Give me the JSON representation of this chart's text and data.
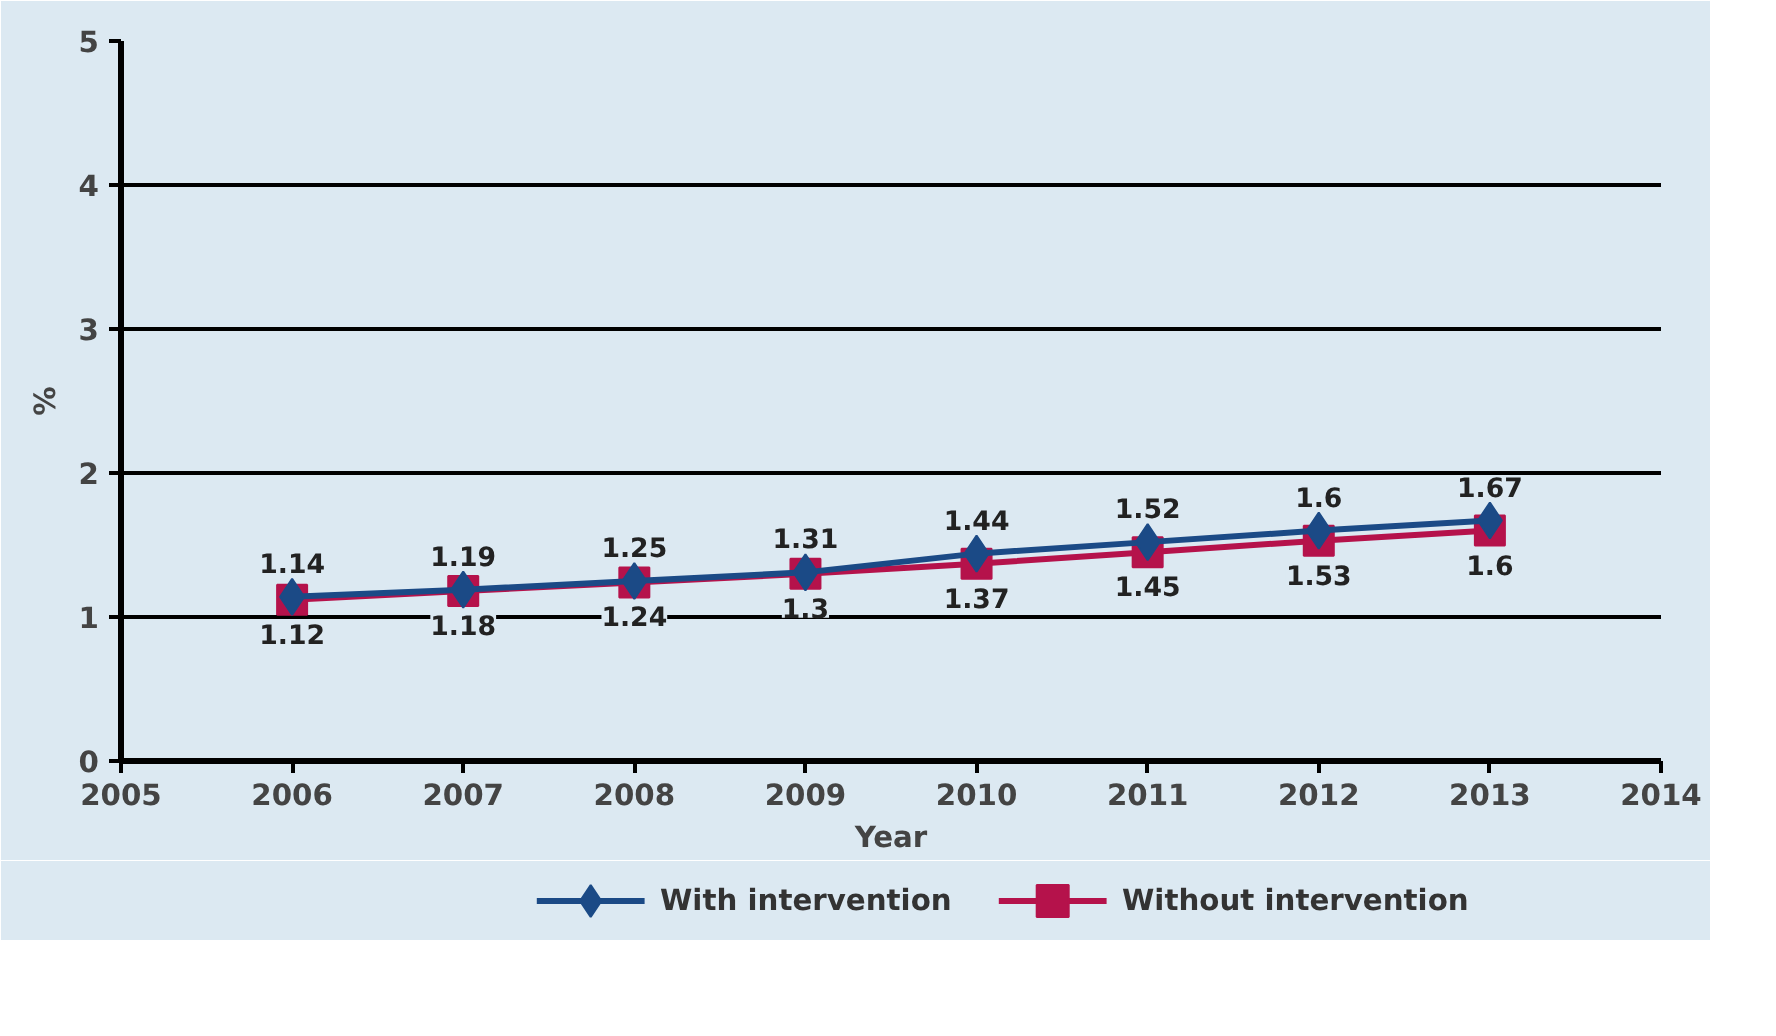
{
  "chart_data": {
    "type": "line",
    "xlabel": "Year",
    "ylabel": "%",
    "x": [
      2006,
      2007,
      2008,
      2009,
      2010,
      2011,
      2012,
      2013
    ],
    "series": [
      {
        "name": "With intervention",
        "color": "#1b4a86",
        "marker": "diamond",
        "values": [
          1.14,
          1.19,
          1.25,
          1.31,
          1.44,
          1.52,
          1.6,
          1.67
        ]
      },
      {
        "name": "Without intervention",
        "color": "#b5124b",
        "marker": "square",
        "values": [
          1.12,
          1.18,
          1.24,
          1.3,
          1.37,
          1.45,
          1.53,
          1.6
        ]
      }
    ],
    "xlim": [
      2005,
      2014
    ],
    "xticks": [
      2005,
      2006,
      2007,
      2008,
      2009,
      2010,
      2011,
      2012,
      2013,
      2014
    ],
    "ylim": [
      0,
      5
    ],
    "yticks": [
      0,
      1,
      2,
      3,
      4,
      5
    ],
    "grid": "y",
    "legend": "bottom",
    "data_labels": true
  }
}
